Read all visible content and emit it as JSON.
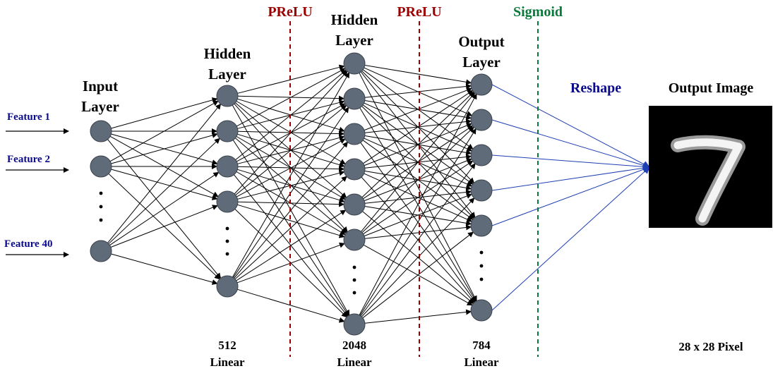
{
  "title_layers": {
    "input": [
      "Input",
      "Layer"
    ],
    "hidden1": [
      "Hidden",
      "Layer"
    ],
    "hidden2": [
      "Hidden",
      "Layer"
    ],
    "output": [
      "Output",
      "Layer"
    ]
  },
  "activations": {
    "first": "PReLU",
    "second": "PReLU",
    "third": "Sigmoid"
  },
  "features": [
    "Feature 1",
    "Feature 2",
    "Feature 40"
  ],
  "layer_sizes": {
    "hidden1": {
      "count": "512",
      "type": "Linear"
    },
    "hidden2": {
      "count": "2048",
      "type": "Linear"
    },
    "output": {
      "count": "784",
      "type": "Linear"
    }
  },
  "reshape_label": "Reshape",
  "output_image": {
    "title": "Output Image",
    "caption": "28 x 28 Pixel"
  },
  "colors": {
    "node_fill": "#5f6b78",
    "node_stroke": "#3a434d",
    "prelu": "#9b0000",
    "sigmoid": "#0a7a3a",
    "reshape": "#0a0a8a",
    "reshape_lines": "#1f3fb4",
    "feature_text": "#0a0a8a"
  },
  "icons": {
    "output_digit": "handwritten-seven-digit-icon"
  }
}
